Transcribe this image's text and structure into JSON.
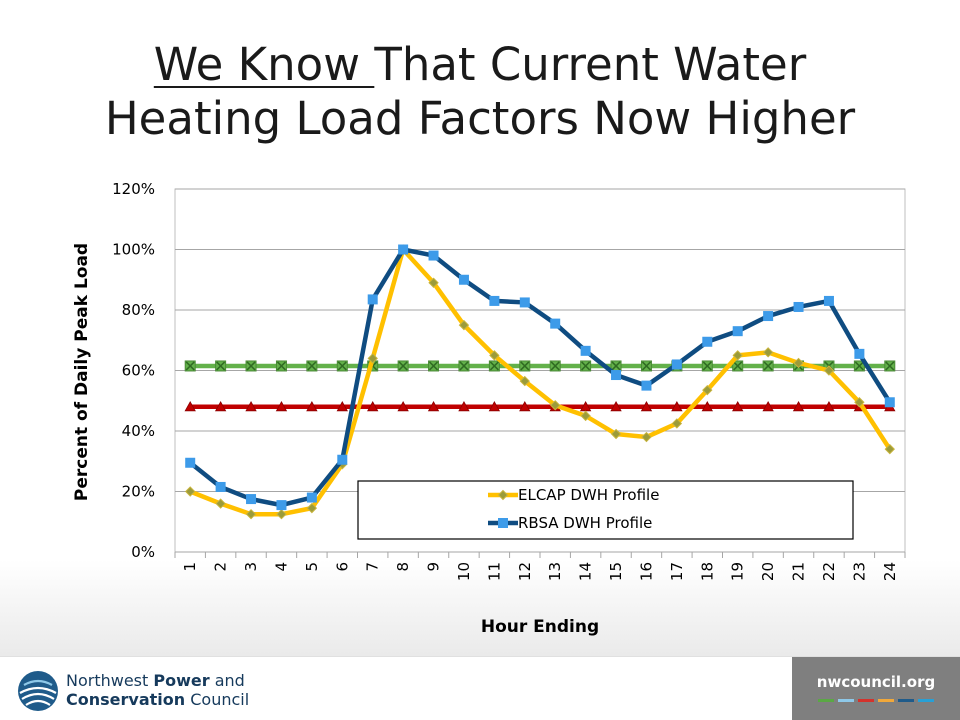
{
  "slide": {
    "title_underlined": "We Know ",
    "title_rest": "That Current Water",
    "title_line2": "Heating Load Factors Now Higher"
  },
  "chart_data": {
    "type": "line",
    "xlabel": "Hour Ending",
    "ylabel": "Percent  of Daily Peak Load",
    "categories": [
      "1",
      "2",
      "3",
      "4",
      "5",
      "6",
      "7",
      "8",
      "9",
      "10",
      "11",
      "12",
      "13",
      "14",
      "15",
      "16",
      "17",
      "18",
      "19",
      "20",
      "21",
      "22",
      "23",
      "24"
    ],
    "yticks": [
      "0%",
      "20%",
      "40%",
      "60%",
      "80%",
      "100%",
      "120%"
    ],
    "ylim": [
      0,
      120
    ],
    "grid": true,
    "legend_position": "bottom-inside",
    "series": [
      {
        "name": "ELCAP DWH Profile",
        "color": "#FFC000",
        "marker": "diamond",
        "values": [
          20,
          16,
          12.5,
          12.5,
          14.5,
          29,
          64,
          100,
          89,
          75,
          65,
          56.5,
          48.5,
          45,
          39,
          38,
          42.5,
          53.5,
          65,
          66,
          62.5,
          60,
          49.5,
          34
        ]
      },
      {
        "name": "RBSA DWH Profile",
        "color": "#0F4C81",
        "marker": "square",
        "values": [
          29.5,
          21.5,
          17.5,
          15.5,
          18,
          30.5,
          83.5,
          100,
          98,
          90,
          83,
          82.5,
          75.5,
          66.5,
          58.5,
          55,
          62,
          69.5,
          73,
          78,
          81,
          83,
          65.5,
          49.5
        ]
      },
      {
        "color": "#63B14A",
        "marker": "x",
        "values": [
          61.5,
          61.5,
          61.5,
          61.5,
          61.5,
          61.5,
          61.5,
          61.5,
          61.5,
          61.5,
          61.5,
          61.5,
          61.5,
          61.5,
          61.5,
          61.5,
          61.5,
          61.5,
          61.5,
          61.5,
          61.5,
          61.5,
          61.5,
          61.5
        ]
      },
      {
        "color": "#C00000",
        "marker": "triangle",
        "values": [
          48,
          48,
          48,
          48,
          48,
          48,
          48,
          48,
          48,
          48,
          48,
          48,
          48,
          48,
          48,
          48,
          48,
          48,
          48,
          48,
          48,
          48,
          48,
          48
        ]
      }
    ]
  },
  "footer": {
    "logo_line1_a": "Northwest ",
    "logo_line1_b": "Power",
    "logo_line1_c": " and",
    "logo_line2_a": "Conservation",
    "logo_line2_b": " Council",
    "website": "nwcouncil.org",
    "stripe_colors": [
      "#5aa844",
      "#8ec8e8",
      "#d4322c",
      "#f1a83a",
      "#1f5b8a",
      "#27a0d6"
    ]
  }
}
